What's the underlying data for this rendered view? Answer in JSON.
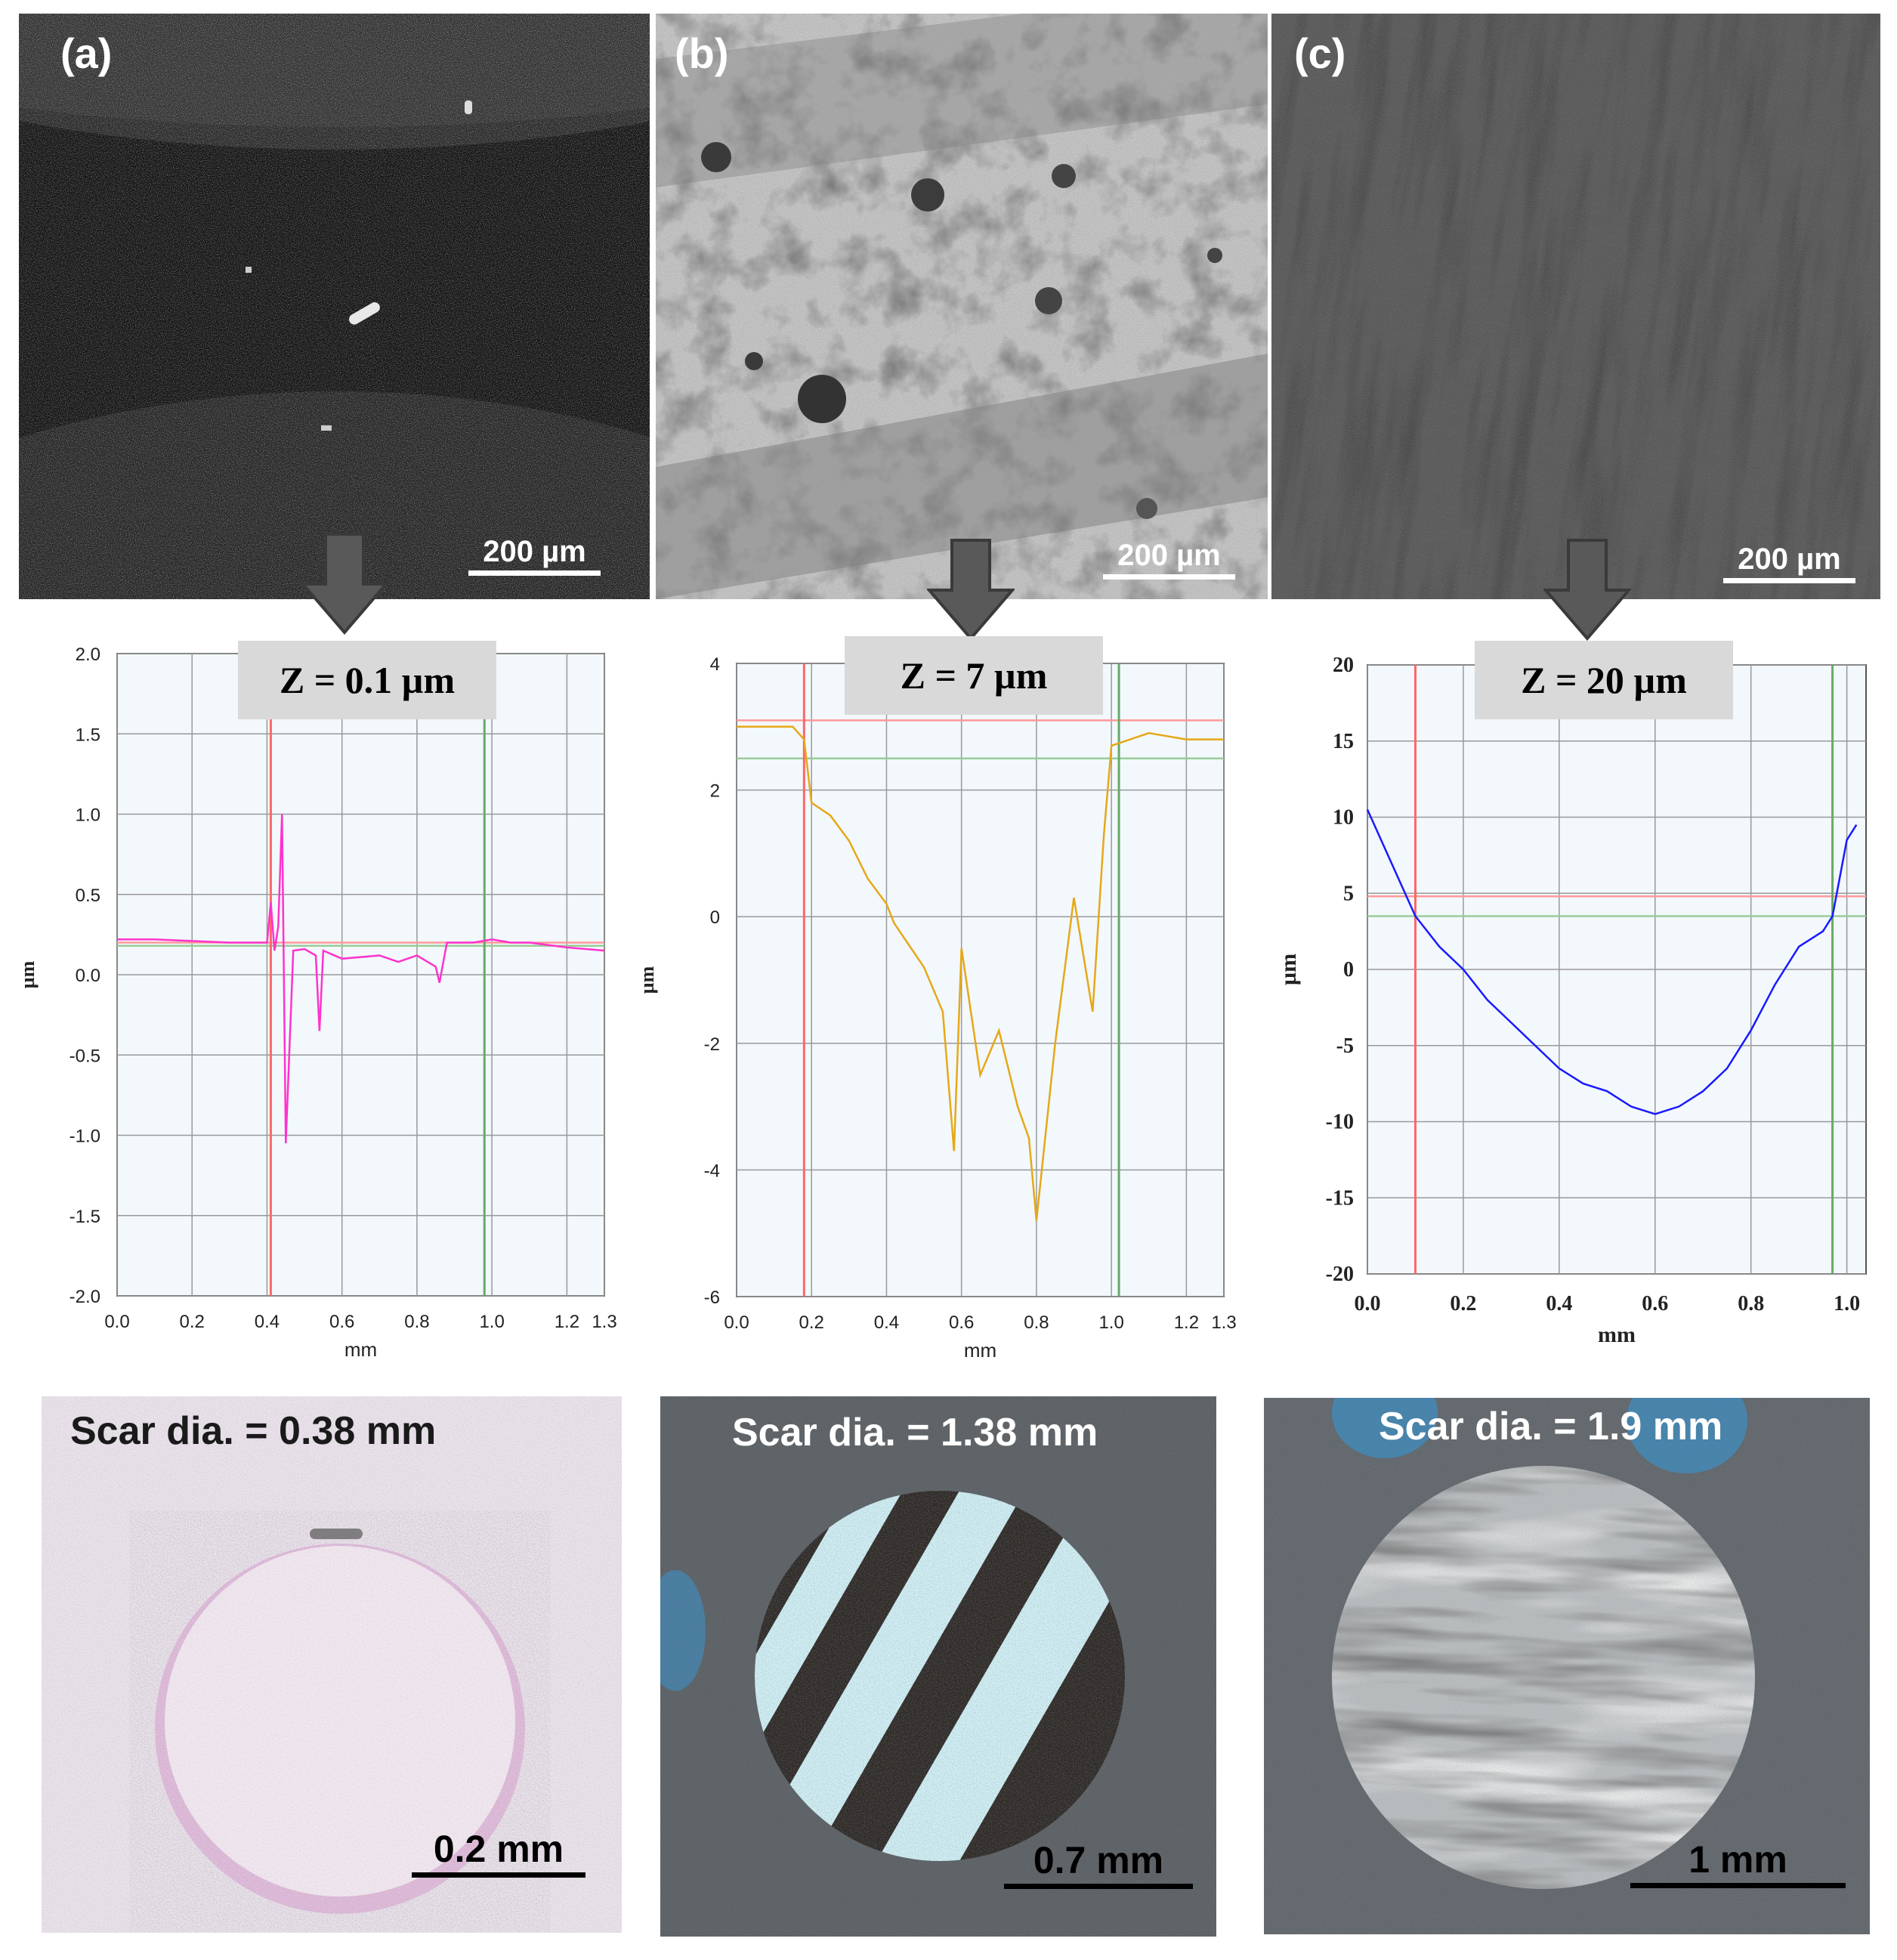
{
  "sem_panels": [
    {
      "label": "(a)",
      "scale_bar": "200 µm"
    },
    {
      "label": "(b)",
      "scale_bar": "200 µm"
    },
    {
      "label": "(c)",
      "scale_bar": "200 µm"
    }
  ],
  "depth_labels": [
    "Z = 0.1 µm",
    "Z = 7 µm",
    "Z = 20 µm"
  ],
  "chart_data": [
    {
      "type": "line",
      "xlabel": "mm",
      "ylabel": "µm",
      "xlim": [
        0,
        1.3
      ],
      "ylim": [
        -2.0,
        2.0
      ],
      "x_ticks": [
        "0.0",
        "0.2",
        "0.4",
        "0.6",
        "0.8",
        "1.0",
        "1.2",
        "1.3"
      ],
      "x_tick_values": [
        0,
        0.2,
        0.4,
        0.6,
        0.8,
        1.0,
        1.2,
        1.3
      ],
      "y_ticks": [
        "2.0",
        "1.5",
        "1.0",
        "0.5",
        "0.0",
        "-0.5",
        "-1.0",
        "-1.5",
        "-2.0"
      ],
      "y_tick_values": [
        2.0,
        1.5,
        1.0,
        0.5,
        0.0,
        -0.5,
        -1.0,
        -1.5,
        -2.0
      ],
      "grid": true,
      "series_color": "#ff33cc",
      "vertical_markers": [
        {
          "x": 0.41,
          "color": "#ff6666"
        },
        {
          "x": 0.98,
          "color": "#66aa66"
        }
      ],
      "horizontal_markers": [
        {
          "y": 0.2,
          "color": "#ff9999"
        },
        {
          "y": 0.18,
          "color": "#99cc99"
        }
      ],
      "series": [
        {
          "x": [
            0,
            0.1,
            0.2,
            0.3,
            0.38,
            0.4,
            0.41,
            0.42,
            0.43,
            0.44,
            0.45,
            0.47,
            0.5,
            0.53,
            0.54,
            0.55,
            0.6,
            0.7,
            0.75,
            0.8,
            0.85,
            0.86,
            0.88,
            0.95,
            1.0,
            1.05,
            1.1,
            1.2,
            1.3
          ],
          "y": [
            0.22,
            0.22,
            0.21,
            0.2,
            0.2,
            0.2,
            0.45,
            0.15,
            0.3,
            1.0,
            -1.05,
            0.15,
            0.16,
            0.12,
            -0.35,
            0.15,
            0.1,
            0.12,
            0.08,
            0.12,
            0.05,
            -0.05,
            0.2,
            0.2,
            0.22,
            0.2,
            0.2,
            0.17,
            0.15
          ]
        }
      ]
    },
    {
      "type": "line",
      "xlabel": "mm",
      "ylabel": "µm",
      "xlim": [
        0,
        1.3
      ],
      "ylim": [
        -6,
        4
      ],
      "x_ticks": [
        "0.0",
        "0.2",
        "0.4",
        "0.6",
        "0.8",
        "1.0",
        "1.2",
        "1.3"
      ],
      "x_tick_values": [
        0,
        0.2,
        0.4,
        0.6,
        0.8,
        1.0,
        1.2,
        1.3
      ],
      "y_ticks": [
        "4",
        "2",
        "0",
        "-2",
        "-4",
        "-6"
      ],
      "y_tick_values": [
        4,
        2,
        0,
        -2,
        -4,
        -6
      ],
      "grid": true,
      "series_color": "#e6a817",
      "vertical_markers": [
        {
          "x": 0.18,
          "color": "#ff6666"
        },
        {
          "x": 1.02,
          "color": "#66aa66"
        }
      ],
      "horizontal_markers": [
        {
          "y": 3.1,
          "color": "#ff9999"
        },
        {
          "y": 2.5,
          "color": "#99cc99"
        }
      ],
      "series": [
        {
          "x": [
            0,
            0.05,
            0.1,
            0.15,
            0.18,
            0.2,
            0.25,
            0.3,
            0.35,
            0.4,
            0.42,
            0.5,
            0.55,
            0.58,
            0.6,
            0.65,
            0.7,
            0.75,
            0.78,
            0.8,
            0.85,
            0.9,
            0.95,
            0.98,
            1.0,
            1.05,
            1.1,
            1.2,
            1.3
          ],
          "y": [
            3.0,
            3.0,
            3.0,
            3.0,
            2.8,
            1.8,
            1.6,
            1.2,
            0.6,
            0.2,
            -0.1,
            -0.8,
            -1.5,
            -3.7,
            -0.5,
            -2.5,
            -1.8,
            -3.0,
            -3.5,
            -4.8,
            -2.0,
            0.3,
            -1.5,
            1.3,
            2.7,
            2.8,
            2.9,
            2.8,
            2.8
          ]
        }
      ]
    },
    {
      "type": "line",
      "xlabel": "mm",
      "ylabel": "µm",
      "xlim": [
        0,
        1.04
      ],
      "ylim": [
        -20,
        20
      ],
      "x_ticks": [
        "0.0",
        "0.2",
        "0.4",
        "0.6",
        "0.8",
        "1.0"
      ],
      "x_tick_values": [
        0,
        0.2,
        0.4,
        0.6,
        0.8,
        1.0
      ],
      "y_ticks": [
        "20",
        "15",
        "10",
        "5",
        "0",
        "-5",
        "-10",
        "-15",
        "-20"
      ],
      "y_tick_values": [
        20,
        15,
        10,
        5,
        0,
        -5,
        -10,
        -15,
        -20
      ],
      "grid": true,
      "series_color": "#1a1aff",
      "vertical_markers": [
        {
          "x": 0.1,
          "color": "#ff6666"
        },
        {
          "x": 0.97,
          "color": "#66aa66"
        }
      ],
      "horizontal_markers": [
        {
          "y": 4.8,
          "color": "#ff9999"
        },
        {
          "y": 3.5,
          "color": "#99cc99"
        }
      ],
      "series": [
        {
          "x": [
            0,
            0.05,
            0.1,
            0.15,
            0.2,
            0.25,
            0.3,
            0.35,
            0.4,
            0.45,
            0.5,
            0.55,
            0.6,
            0.65,
            0.7,
            0.75,
            0.8,
            0.85,
            0.9,
            0.95,
            0.97,
            1.0,
            1.02
          ],
          "y": [
            10.5,
            7.0,
            3.5,
            1.5,
            0.0,
            -2.0,
            -3.5,
            -5.0,
            -6.5,
            -7.5,
            -8.0,
            -9.0,
            -9.5,
            -9.0,
            -8.0,
            -6.5,
            -4.0,
            -1.0,
            1.5,
            2.5,
            3.5,
            8.5,
            9.5
          ]
        }
      ]
    }
  ],
  "scar_panels": [
    {
      "title": "Scar dia. = 0.38 mm",
      "scale_bar": "0.2 mm"
    },
    {
      "title": "Scar dia. = 1.38 mm",
      "scale_bar": "0.7 mm"
    },
    {
      "title": "Scar dia. = 1.9 mm",
      "scale_bar": "1 mm"
    }
  ]
}
